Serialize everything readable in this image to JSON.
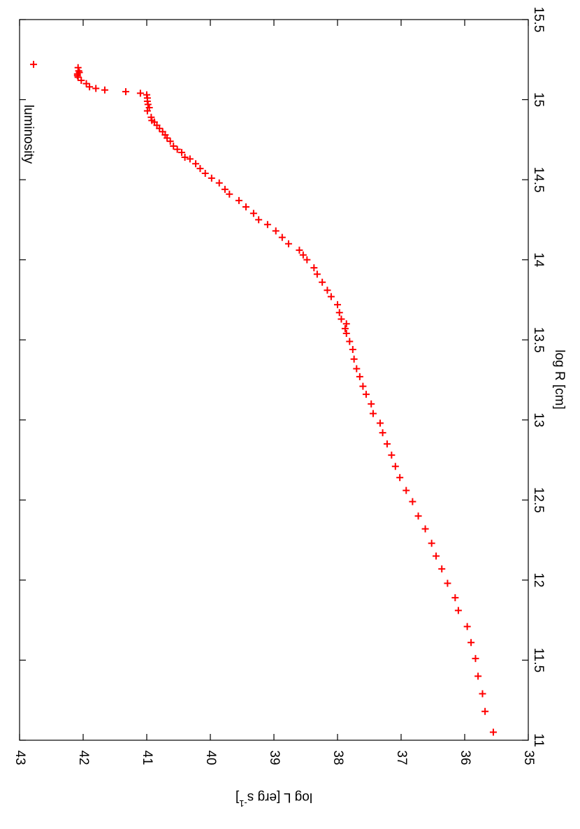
{
  "chart_data": {
    "type": "scatter",
    "orientation": "rotated 90 degrees clockwise",
    "xlabel": "log R [cm]",
    "ylabel": "log L [erg s",
    "ylabel_sup": "-1",
    "ylabel_end": "]",
    "xlim": [
      11,
      15.5
    ],
    "ylim": [
      35,
      43
    ],
    "x_ticks": [
      "11",
      "11.5",
      "12",
      "12.5",
      "13",
      "13.5",
      "14",
      "14.5",
      "15",
      "15.5"
    ],
    "y_ticks": [
      "35",
      "36",
      "37",
      "38",
      "39",
      "40",
      "41",
      "42",
      "43"
    ],
    "legend": {
      "label": "luminosity",
      "placement": "top-right"
    },
    "marker": "+",
    "color": "#ff0000",
    "grid": false,
    "series": [
      {
        "name": "luminosity",
        "points": [
          [
            11.05,
            35.55
          ],
          [
            11.18,
            35.68
          ],
          [
            11.29,
            35.72
          ],
          [
            11.4,
            35.79
          ],
          [
            11.51,
            35.83
          ],
          [
            11.61,
            35.9
          ],
          [
            11.71,
            35.96
          ],
          [
            11.81,
            36.1
          ],
          [
            11.89,
            36.15
          ],
          [
            11.98,
            36.27
          ],
          [
            12.07,
            36.36
          ],
          [
            12.15,
            36.45
          ],
          [
            12.23,
            36.52
          ],
          [
            12.32,
            36.62
          ],
          [
            12.4,
            36.73
          ],
          [
            12.49,
            36.82
          ],
          [
            12.56,
            36.92
          ],
          [
            12.64,
            37.02
          ],
          [
            12.71,
            37.09
          ],
          [
            12.78,
            37.15
          ],
          [
            12.85,
            37.22
          ],
          [
            12.92,
            37.29
          ],
          [
            12.98,
            37.33
          ],
          [
            13.04,
            37.44
          ],
          [
            13.1,
            37.47
          ],
          [
            13.16,
            37.55
          ],
          [
            13.21,
            37.6
          ],
          [
            13.27,
            37.65
          ],
          [
            13.32,
            37.7
          ],
          [
            13.38,
            37.74
          ],
          [
            13.44,
            37.76
          ],
          [
            13.49,
            37.81
          ],
          [
            13.54,
            37.86
          ],
          [
            13.57,
            37.88
          ],
          [
            13.6,
            37.86
          ],
          [
            13.63,
            37.94
          ],
          [
            13.67,
            37.97
          ],
          [
            13.72,
            38.0
          ],
          [
            13.77,
            38.1
          ],
          [
            13.81,
            38.16
          ],
          [
            13.86,
            38.24
          ],
          [
            13.91,
            38.32
          ],
          [
            13.95,
            38.37
          ],
          [
            14.0,
            38.48
          ],
          [
            14.03,
            38.54
          ],
          [
            14.06,
            38.6
          ],
          [
            14.1,
            38.77
          ],
          [
            14.14,
            38.87
          ],
          [
            14.18,
            38.97
          ],
          [
            14.22,
            39.1
          ],
          [
            14.25,
            39.24
          ],
          [
            14.29,
            39.32
          ],
          [
            14.33,
            39.44
          ],
          [
            14.37,
            39.55
          ],
          [
            14.41,
            39.7
          ],
          [
            14.44,
            39.77
          ],
          [
            14.48,
            39.86
          ],
          [
            14.51,
            39.98
          ],
          [
            14.54,
            40.08
          ],
          [
            14.57,
            40.16
          ],
          [
            14.6,
            40.23
          ],
          [
            14.63,
            40.32
          ],
          [
            14.64,
            40.4
          ],
          [
            14.67,
            40.45
          ],
          [
            14.69,
            40.52
          ],
          [
            14.71,
            40.58
          ],
          [
            14.74,
            40.63
          ],
          [
            14.76,
            40.68
          ],
          [
            14.78,
            40.71
          ],
          [
            14.8,
            40.75
          ],
          [
            14.82,
            40.8
          ],
          [
            14.84,
            40.84
          ],
          [
            14.86,
            40.88
          ],
          [
            14.87,
            40.92
          ],
          [
            14.89,
            40.93
          ],
          [
            14.93,
            40.99
          ],
          [
            14.95,
            40.96
          ],
          [
            14.97,
            40.98
          ],
          [
            14.99,
            40.99
          ],
          [
            15.01,
            40.99
          ],
          [
            15.03,
            41.0
          ],
          [
            15.04,
            41.1
          ],
          [
            15.05,
            41.33
          ],
          [
            15.06,
            41.66
          ],
          [
            15.07,
            41.8
          ],
          [
            15.08,
            41.9
          ],
          [
            15.1,
            41.95
          ],
          [
            15.12,
            42.03
          ],
          [
            15.14,
            42.08
          ],
          [
            15.15,
            42.09
          ],
          [
            15.16,
            42.09
          ],
          [
            15.17,
            42.06
          ],
          [
            15.18,
            42.07
          ],
          [
            15.2,
            42.08
          ],
          [
            15.22,
            42.78
          ]
        ]
      }
    ]
  }
}
